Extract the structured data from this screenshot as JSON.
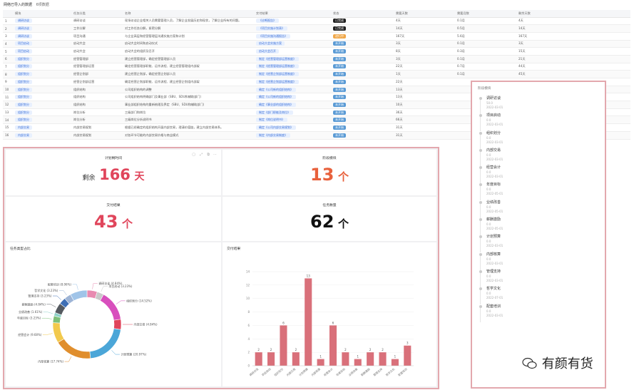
{
  "header": {
    "title": "网络已导入的数据",
    "subtitle": "6项数据"
  },
  "table": {
    "columns": [
      "",
      "模块",
      "任务分类",
      "名称",
      "交付结果",
      "状态",
      "需要天数",
      "需要月数",
      "剩余天数"
    ],
    "rows": [
      {
        "no": "1",
        "module": "调研访谈",
        "cat": "调研访谈",
        "name": "现场访谈企业相关人员需要管理人员，了解企业发展历史和现状，了解企业所有的问题。",
        "result": "《诊断报告》",
        "status": "已完成",
        "sc": "#222",
        "days": "4天",
        "months": "0.1月",
        "remain": "4天"
      },
      {
        "no": "2",
        "module": "调研访谈",
        "cat": "工作分解",
        "name": "对工作任务分解，紧密分解",
        "result": "《项目实施计划表》",
        "status": "已完成",
        "sc": "#222",
        "days": "14天",
        "months": "0.5月",
        "remain": "14天"
      },
      {
        "no": "3",
        "module": "调研访谈",
        "cat": "项目沟通",
        "name": "与企业高层和经营管理层沟通实施方案和计划",
        "result": "《项目实施沟通报告》",
        "status": "进行中",
        "sc": "#f0a84a",
        "days": "167天",
        "months": "5.6月",
        "remain": "167天"
      },
      {
        "no": "4",
        "module": "项目启动",
        "cat": "启动大会",
        "name": "启动大会时间和启动仪式",
        "result": "启动大会实施方案",
        "status": "未开始",
        "sc": "#5b9bd5",
        "days": "3天",
        "months": "0.1月",
        "remain": "3天"
      },
      {
        "no": "5",
        "module": "项目启动",
        "cat": "启动大会",
        "name": "启动大会的组织及召开",
        "result": "启动大会召开",
        "status": "未开始",
        "sc": "#5b9bd5",
        "days": "8天",
        "months": "0.3月",
        "remain": "15天"
      },
      {
        "no": "6",
        "module": "组织划分",
        "cat": "经营管理部",
        "name": "建立经营管理部，确定经营管理部人员",
        "result": "制定《经营管理部运营制度》",
        "status": "未开始",
        "sc": "#5b9bd5",
        "days": "3天",
        "months": "0.1月",
        "remain": "21天"
      },
      {
        "no": "7",
        "module": "组织划分",
        "cat": "经营管理部运营",
        "name": "确定经营管理部职能、运作流程、建立经营管理组内部架",
        "result": "制定《经营管理部运营制度》",
        "status": "未开始",
        "sc": "#5b9bd5",
        "days": "22天",
        "months": "0.7月",
        "remain": "44天"
      },
      {
        "no": "8",
        "module": "组织划分",
        "cat": "经营企划部",
        "name": "建立经营企划部，确定经营企划部人员",
        "result": "制定《经营企划部运营制度》",
        "status": "未开始",
        "sc": "#5b9bd5",
        "days": "1天",
        "months": "0.1月",
        "remain": "45天"
      },
      {
        "no": "9",
        "module": "组织划分",
        "cat": "经营企划部运营",
        "name": "确定经营企划部职能、运作流程、建立经营企划组内部架",
        "result": "制定《经营企划部运营制度》",
        "status": "未开始",
        "sc": "#5b9bd5",
        "days": "22天",
        "months": "",
        "remain": ""
      },
      {
        "no": "10",
        "module": "组织划分",
        "cat": "组织结构",
        "name": "公司组织结构的调整",
        "result": "确定《公司新的组织结构》",
        "status": "未开始",
        "sc": "#5b9bd5",
        "days": "13天",
        "months": "",
        "remain": ""
      },
      {
        "no": "11",
        "module": "组织划分",
        "cat": "组织结构",
        "name": "公司组织结构明确部门及事业部（SBU、SDU和辅助部门）",
        "result": "确定《公司新的组织结构》",
        "status": "未开始",
        "sc": "#5b9bd5",
        "days": "13天",
        "months": "",
        "remain": ""
      },
      {
        "no": "12",
        "module": "组织划分",
        "cat": "组织结构",
        "name": "事业部组织结构的重新梳理及界定（SBU、SDU和辅助部门）",
        "result": "确定《事业部的组织结构》",
        "status": "未开始",
        "sc": "#5b9bd5",
        "days": "10天",
        "months": "",
        "remain": ""
      },
      {
        "no": "13",
        "module": "组织划分",
        "cat": "岗位分析",
        "name": "三级部门和岗位",
        "result": "制定《部门职能及岗位》",
        "status": "未开始",
        "sc": "#5b9bd5",
        "days": "36天",
        "months": "",
        "remain": ""
      },
      {
        "no": "14",
        "module": "组织划分",
        "cat": "岗位分析",
        "name": "三级岗位分析说明书",
        "result": "制定《岗位说明书》",
        "status": "未开始",
        "sc": "#5b9bd5",
        "days": "66天",
        "months": "",
        "remain": ""
      },
      {
        "no": "15",
        "module": "内部交易",
        "cat": "内部交易规划",
        "name": "根据已经确定的组织结构开展内部交易，理清价值链，建立内部交易体系。",
        "result": "确定《公司内部交易规划》",
        "status": "未开始",
        "sc": "#5b9bd5",
        "days": "31天",
        "months": "",
        "remain": ""
      },
      {
        "no": "16",
        "module": "内部交易",
        "cat": "内部交易规划",
        "name": "对各环节可能的内部交易价格与商业模式",
        "result": "制定《内部交易制度》",
        "status": "未开始",
        "sc": "#5b9bd5",
        "days": "31天",
        "months": "",
        "remain": ""
      }
    ]
  },
  "cards": {
    "plan": {
      "title": "计划剩时间",
      "prefix": "剩余",
      "value": "166",
      "unit": "天",
      "color": "#e0455b"
    },
    "modules": {
      "title": "阶段模块",
      "value": "13",
      "unit": "个",
      "color": "#e8613c"
    },
    "results": {
      "title": "交付结果",
      "value": "43",
      "unit": "个",
      "color": "#e0455b"
    },
    "tasks": {
      "title": "任务数量",
      "value": "62",
      "unit": "个",
      "color": "#111"
    }
  },
  "pie_title": "任务类型占比",
  "bar_title": "交付结果",
  "chart_data": [
    {
      "type": "pie",
      "title": "任务类型占比",
      "slices": [
        {
          "label": "调研访谈 (4.84%)",
          "value": 4.84,
          "color": "#e88ab0"
        },
        {
          "label": "项目启动 (3.23%)",
          "value": 3.23,
          "color": "#c9c9c9"
        },
        {
          "label": "组织划分 (14.52%)",
          "value": 14.52,
          "color": "#d84fbd"
        },
        {
          "label": "内部交易 (4.84%)",
          "value": 4.84,
          "color": "#e0455b"
        },
        {
          "label": "计划预算 (20.97%)",
          "value": 20.97,
          "color": "#4ba6d8"
        },
        {
          "label": "内部核算 (17.74%)",
          "value": 17.74,
          "color": "#e08e2d"
        },
        {
          "label": "经营会计 (9.68%)",
          "value": 9.68,
          "color": "#f2c94c"
        },
        {
          "label": "年度目标 (3.23%)",
          "value": 3.23,
          "color": "#7ec07a"
        },
        {
          "label": "业绩改善 (1.61%)",
          "value": 1.61,
          "color": "#8fd1c8"
        },
        {
          "label": "薪酬激励 (4.84%)",
          "value": 4.84,
          "color": "#555a60"
        },
        {
          "label": "管理支持 (3.23%)",
          "value": 3.23,
          "color": "#3f6fb5"
        },
        {
          "label": "哲学文化 (3.23%)",
          "value": 3.23,
          "color": "#9db4d6"
        },
        {
          "label": "配套培训 (8.06%)",
          "value": 8.06,
          "color": "#a0c4e8"
        }
      ]
    },
    {
      "type": "bar",
      "title": "交付结果",
      "categories": [
        "调研访谈",
        "项目启动",
        "组织划分",
        "内部交易",
        "计划预算",
        "内部核算",
        "经营会计",
        "年度目标",
        "业绩改善",
        "薪酬激励",
        "管理支持",
        "哲学文化",
        "配套培训"
      ],
      "values": [
        2,
        2,
        6,
        2,
        13,
        1,
        6,
        2,
        1,
        2,
        2,
        1,
        3
      ],
      "ylim": [
        0,
        14
      ],
      "yticks": [
        0,
        2,
        4,
        6,
        8,
        10,
        12,
        14
      ],
      "color": "#d9707a"
    }
  ],
  "timeline": {
    "title": "阶段模块",
    "items": [
      {
        "label": "调研访谈",
        "sub": "50.0",
        "date": "2022-03-01"
      },
      {
        "label": "项目启动",
        "sub": "0.0",
        "date": "2022-03-01"
      },
      {
        "label": "组织划分",
        "sub": "0.0",
        "date": "2022-03-01"
      },
      {
        "label": "内部交易",
        "sub": "0.0",
        "date": "2022-03-01"
      },
      {
        "label": "经营会计",
        "sub": "0.0",
        "date": "2022-03-01"
      },
      {
        "label": "年度目标",
        "sub": "0.0",
        "date": "2022-05-01"
      },
      {
        "label": "业绩改善",
        "sub": "0.0",
        "date": "2022-05-01"
      },
      {
        "label": "薪酬激励",
        "sub": "0.0",
        "date": "2022-05-01"
      },
      {
        "label": "计划预算",
        "sub": "0.0",
        "date": "2022-03-01"
      },
      {
        "label": "内部核算",
        "sub": "0.0",
        "date": "2022-03-01"
      },
      {
        "label": "管理支持",
        "sub": "0.0",
        "date": "2022-03-01"
      },
      {
        "label": "哲学文化",
        "sub": "0.0",
        "date": "2022-07-01"
      },
      {
        "label": "配套培训",
        "sub": "0.0",
        "date": "2022-03-01"
      }
    ]
  },
  "watermark": "有颜有货"
}
